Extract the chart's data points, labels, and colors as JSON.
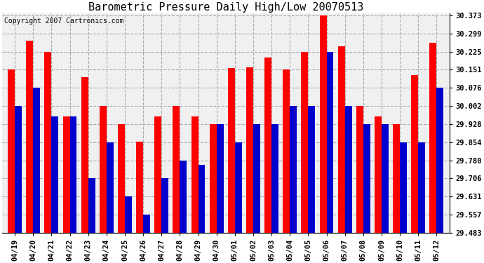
{
  "title": "Barometric Pressure Daily High/Low 20070513",
  "copyright": "Copyright 2007 Cartronics.com",
  "dates": [
    "04/19",
    "04/20",
    "04/21",
    "04/22",
    "04/23",
    "04/24",
    "04/25",
    "04/26",
    "04/27",
    "04/28",
    "04/29",
    "04/30",
    "05/01",
    "05/02",
    "05/03",
    "05/04",
    "05/05",
    "05/06",
    "05/07",
    "05/08",
    "05/09",
    "05/10",
    "05/11",
    "05/12"
  ],
  "highs": [
    30.151,
    30.27,
    30.225,
    29.96,
    30.12,
    30.003,
    29.928,
    29.857,
    29.96,
    30.003,
    29.96,
    29.928,
    30.157,
    30.16,
    30.2,
    30.151,
    30.225,
    30.373,
    30.247,
    30.003,
    29.96,
    29.928,
    30.13,
    30.26
  ],
  "lows": [
    30.002,
    30.076,
    29.96,
    29.96,
    29.706,
    29.854,
    29.631,
    29.557,
    29.706,
    29.78,
    29.76,
    29.928,
    29.854,
    29.928,
    29.928,
    30.002,
    30.002,
    30.225,
    30.002,
    29.928,
    29.928,
    29.854,
    29.854,
    30.076
  ],
  "bar_color_high": "#FF0000",
  "bar_color_low": "#0000CC",
  "bg_color": "#FFFFFF",
  "plot_bg_color": "#F0F0F0",
  "yticks": [
    29.483,
    29.557,
    29.631,
    29.706,
    29.78,
    29.854,
    29.928,
    30.002,
    30.076,
    30.151,
    30.225,
    30.299,
    30.373
  ],
  "ylim_min": 29.483,
  "ylim_max": 30.373,
  "title_fontsize": 11,
  "copyright_fontsize": 7,
  "tick_fontsize": 7.5
}
